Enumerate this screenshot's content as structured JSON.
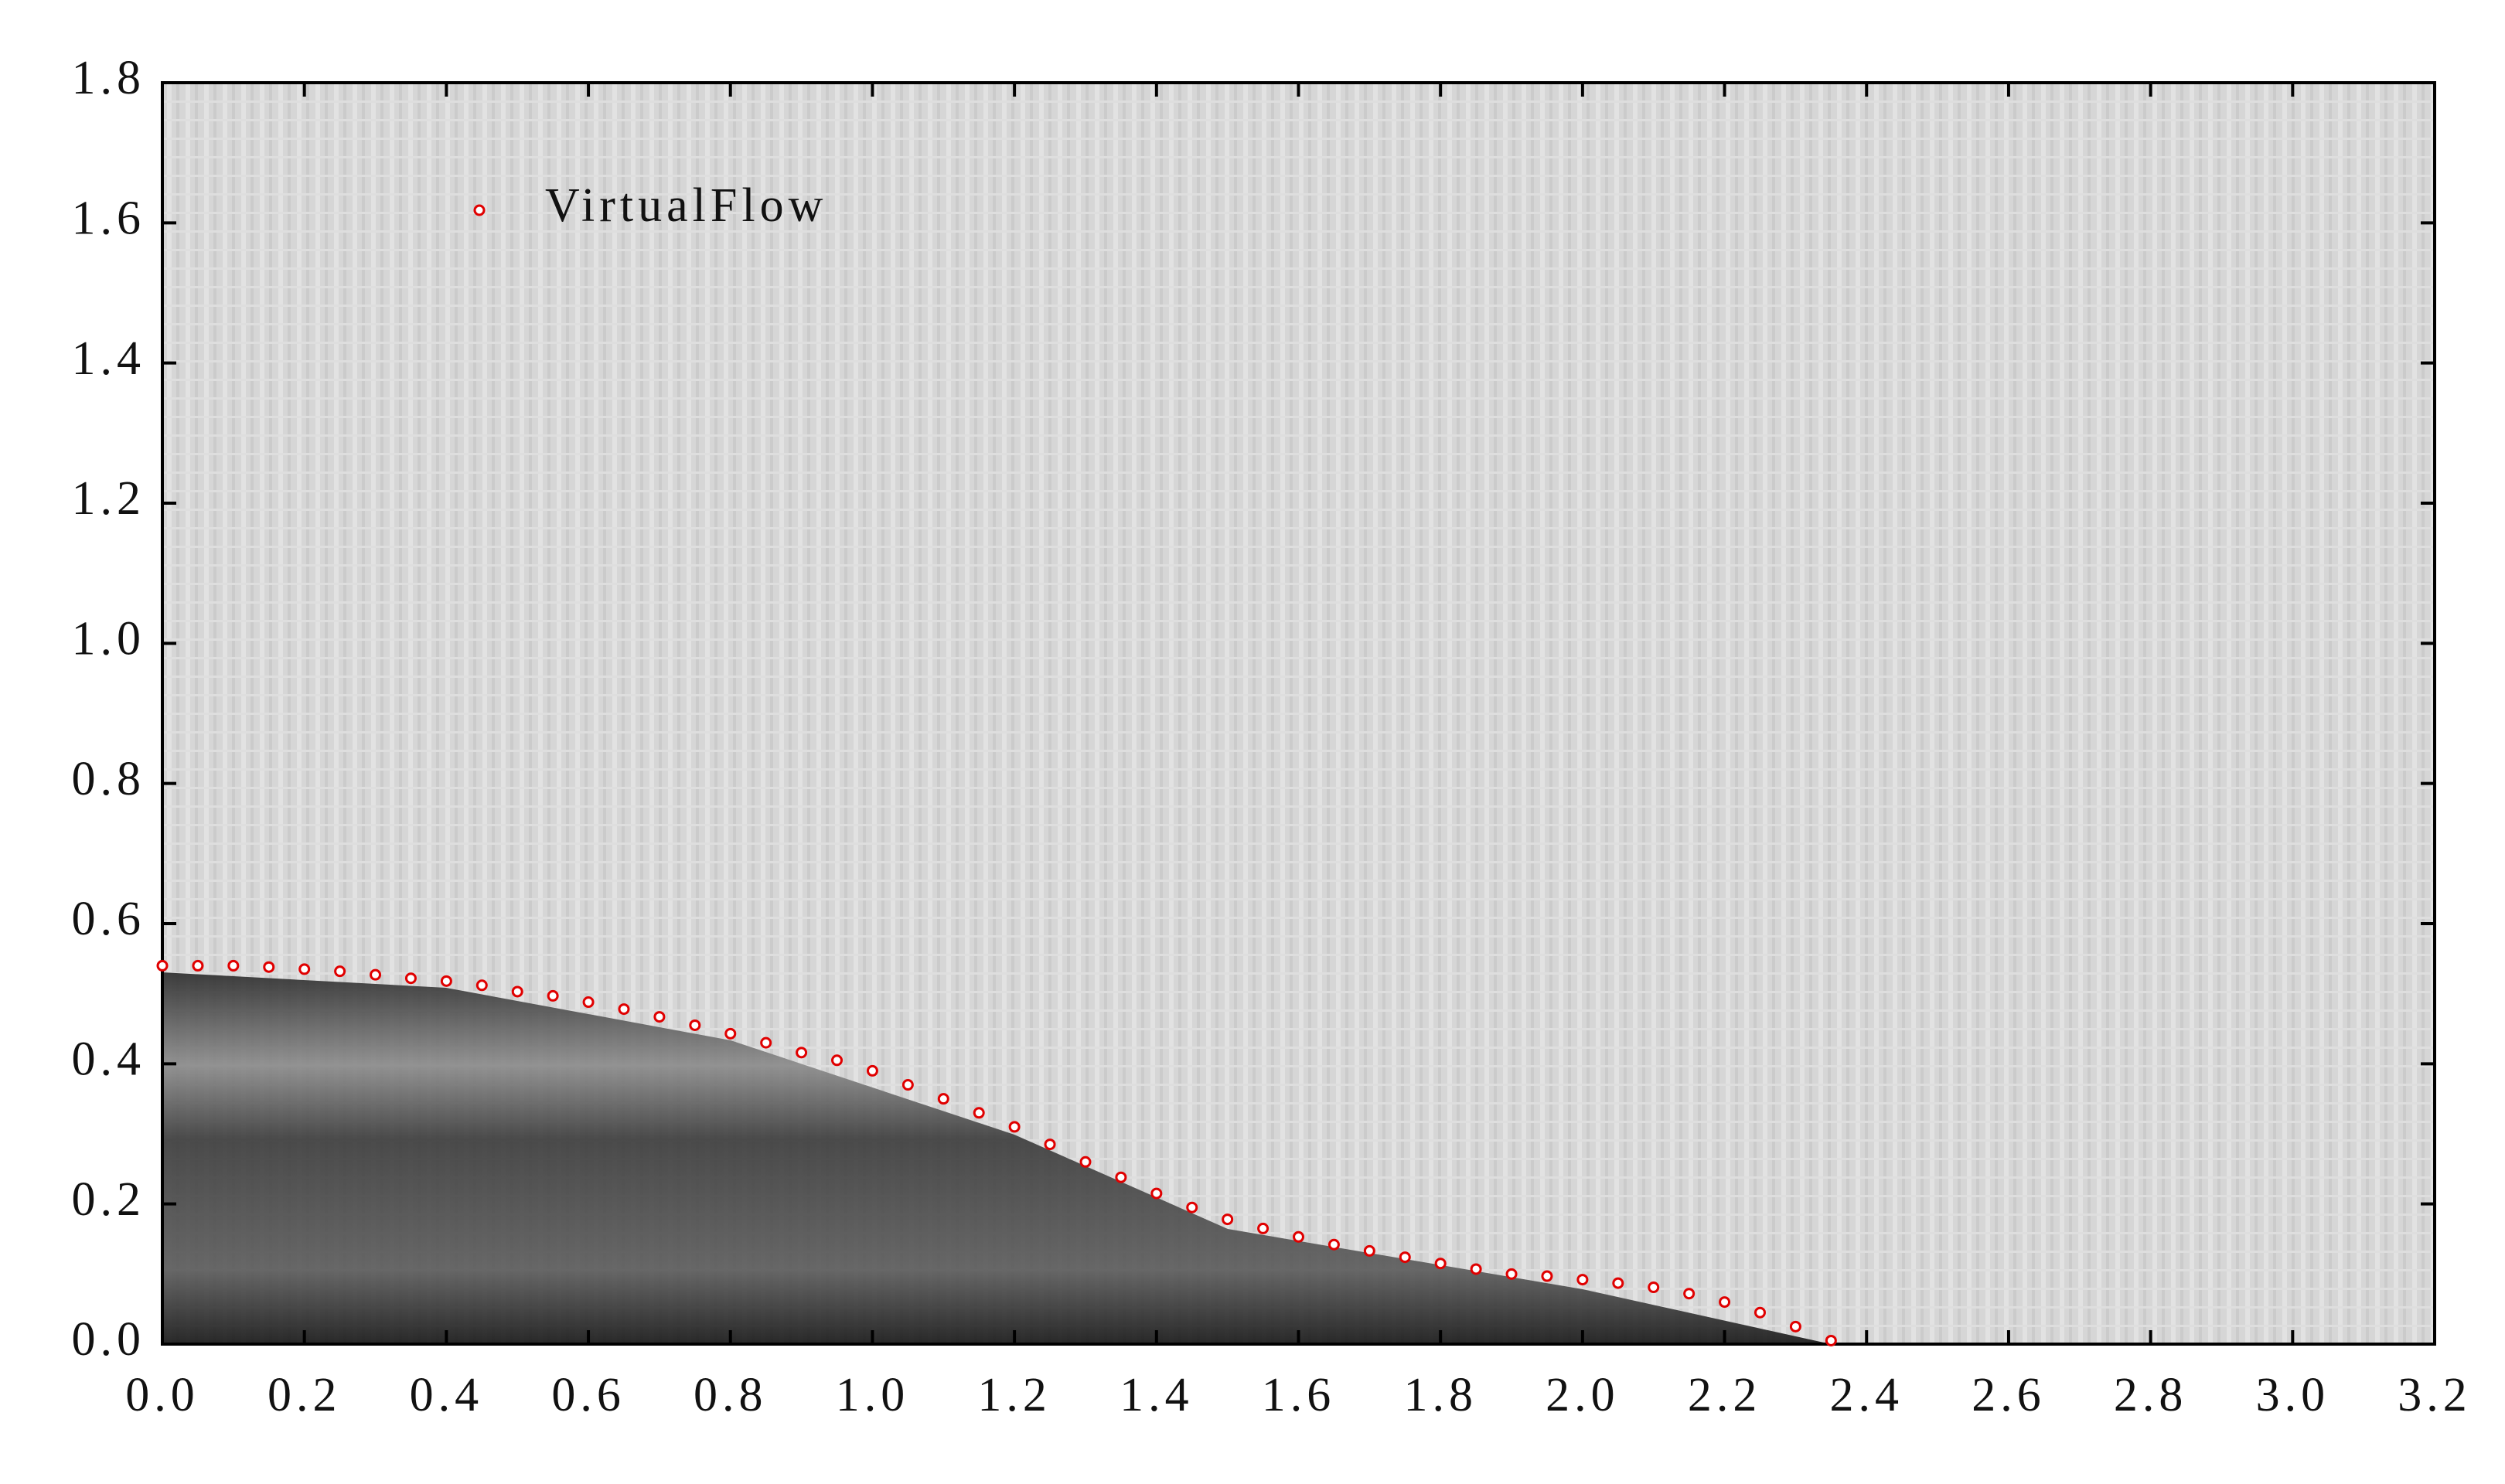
{
  "chart_data": {
    "type": "scatter",
    "series": [
      {
        "name": "VirtualFlow",
        "color": "#e00000",
        "x": [
          0,
          0.05,
          0.1,
          0.15,
          0.2,
          0.25,
          0.3,
          0.35,
          0.4,
          0.45,
          0.5,
          0.55,
          0.6,
          0.65,
          0.7,
          0.75,
          0.8,
          0.85,
          0.9,
          0.95,
          1.0,
          1.05,
          1.1,
          1.15,
          1.2,
          1.25,
          1.3,
          1.35,
          1.4,
          1.45,
          1.5,
          1.55,
          1.6,
          1.65,
          1.7,
          1.75,
          1.8,
          1.85,
          1.9,
          1.95,
          2.0,
          2.05,
          2.1,
          2.15,
          2.2,
          2.25,
          2.3,
          2.35
        ],
        "values": [
          0.54,
          0.54,
          0.54,
          0.538,
          0.535,
          0.532,
          0.527,
          0.522,
          0.518,
          0.512,
          0.503,
          0.497,
          0.488,
          0.478,
          0.467,
          0.455,
          0.443,
          0.43,
          0.416,
          0.405,
          0.39,
          0.37,
          0.35,
          0.33,
          0.31,
          0.285,
          0.26,
          0.238,
          0.215,
          0.195,
          0.178,
          0.165,
          0.153,
          0.142,
          0.133,
          0.124,
          0.115,
          0.107,
          0.1,
          0.097,
          0.092,
          0.087,
          0.081,
          0.072,
          0.06,
          0.045,
          0.025,
          0.005
        ]
      }
    ],
    "xlim": [
      0,
      3.2
    ],
    "xticks": [
      {
        "value": 0,
        "label": "0.0"
      },
      0.2,
      0.4,
      0.6,
      0.8,
      {
        "value": 1,
        "label": "1.0"
      },
      1.2,
      1.4,
      1.6,
      1.8,
      {
        "value": 2,
        "label": "2.0"
      },
      2.2,
      2.4,
      2.6,
      2.8,
      {
        "value": 3,
        "label": "3.0"
      },
      3.2
    ],
    "ylim": [
      0,
      1.8
    ],
    "yticks": [
      {
        "value": 0,
        "label": "0.0"
      },
      0.2,
      0.4,
      0.6,
      0.8,
      {
        "value": 1,
        "label": "1.0"
      },
      1.2,
      1.4,
      1.6,
      1.8
    ],
    "grid": false,
    "legend": "upper left"
  }
}
